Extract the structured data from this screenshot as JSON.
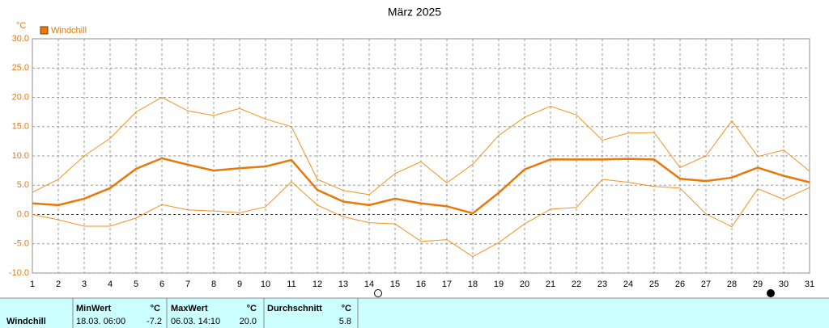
{
  "chart_data": {
    "type": "line",
    "title": "März 2025",
    "y_label": "°C",
    "x": [
      1,
      2,
      3,
      4,
      5,
      6,
      7,
      8,
      9,
      10,
      11,
      12,
      13,
      14,
      15,
      16,
      17,
      18,
      19,
      20,
      21,
      22,
      23,
      24,
      25,
      26,
      27,
      28,
      29,
      30,
      31
    ],
    "xlim": [
      1,
      31
    ],
    "xticks": [
      1,
      2,
      3,
      4,
      5,
      6,
      7,
      8,
      9,
      10,
      11,
      12,
      13,
      14,
      15,
      16,
      17,
      18,
      19,
      20,
      21,
      22,
      23,
      24,
      25,
      26,
      27,
      28,
      29,
      30,
      31
    ],
    "ylim": [
      -10,
      30
    ],
    "yticks": [
      {
        "value": -10,
        "label": "-10.0"
      },
      {
        "value": -5,
        "label": "-5.0"
      },
      {
        "value": 0,
        "label": "0.0"
      },
      {
        "value": 5,
        "label": "5.0"
      },
      {
        "value": 10,
        "label": "10.0"
      },
      {
        "value": 15,
        "label": "15.0"
      },
      {
        "value": 20,
        "label": "20.0"
      },
      {
        "value": 25,
        "label": "25.0"
      },
      {
        "value": 30,
        "label": "30.0"
      }
    ],
    "grid": true,
    "series": [
      {
        "name": "Windchill",
        "color": "#e8780a",
        "linewidth": 2.5,
        "values": [
          1.9,
          1.6,
          2.7,
          4.5,
          7.8,
          9.6,
          8.5,
          7.5,
          7.9,
          8.2,
          9.3,
          4.2,
          2.2,
          1.6,
          2.7,
          1.9,
          1.4,
          0.2,
          3.7,
          7.7,
          9.4,
          9.4,
          9.4,
          9.5,
          9.4,
          6.1,
          5.7,
          6.3,
          8.0,
          6.6,
          5.5
        ]
      },
      {
        "color": "#f0921e",
        "linewidth": 1,
        "values": [
          3.8,
          6.0,
          10.0,
          13.0,
          17.5,
          20.0,
          17.7,
          16.9,
          18.1,
          16.3,
          15.0,
          6.0,
          4.1,
          3.4,
          7.0,
          9.0,
          5.4,
          8.6,
          13.5,
          16.6,
          18.5,
          17.0,
          12.7,
          13.9,
          14.0,
          8.0,
          10.0,
          16.0,
          9.9,
          11.0,
          7.4
        ]
      },
      {
        "color": "#f0921e",
        "linewidth": 1,
        "values": [
          0.0,
          -0.9,
          -2.0,
          -2.0,
          -0.6,
          1.7,
          0.8,
          0.6,
          0.3,
          1.3,
          5.6,
          1.6,
          -0.4,
          -1.4,
          -1.6,
          -4.6,
          -4.3,
          -7.2,
          -4.8,
          -1.6,
          0.9,
          1.2,
          6.0,
          5.5,
          4.8,
          4.5,
          0.1,
          -2.1,
          4.4,
          2.6,
          4.6
        ]
      }
    ]
  },
  "summary": {
    "label": "Windchill",
    "columns": [
      {
        "title": "MinWert",
        "unit": "°C",
        "time": "18.03.  06:00",
        "value": "-7.2"
      },
      {
        "title": "MaxWert",
        "unit": "°C",
        "time": "06.03.  14:10",
        "value": "20.0"
      },
      {
        "title": "Durchschnitt",
        "unit": "°C",
        "value": "5.8"
      }
    ]
  }
}
